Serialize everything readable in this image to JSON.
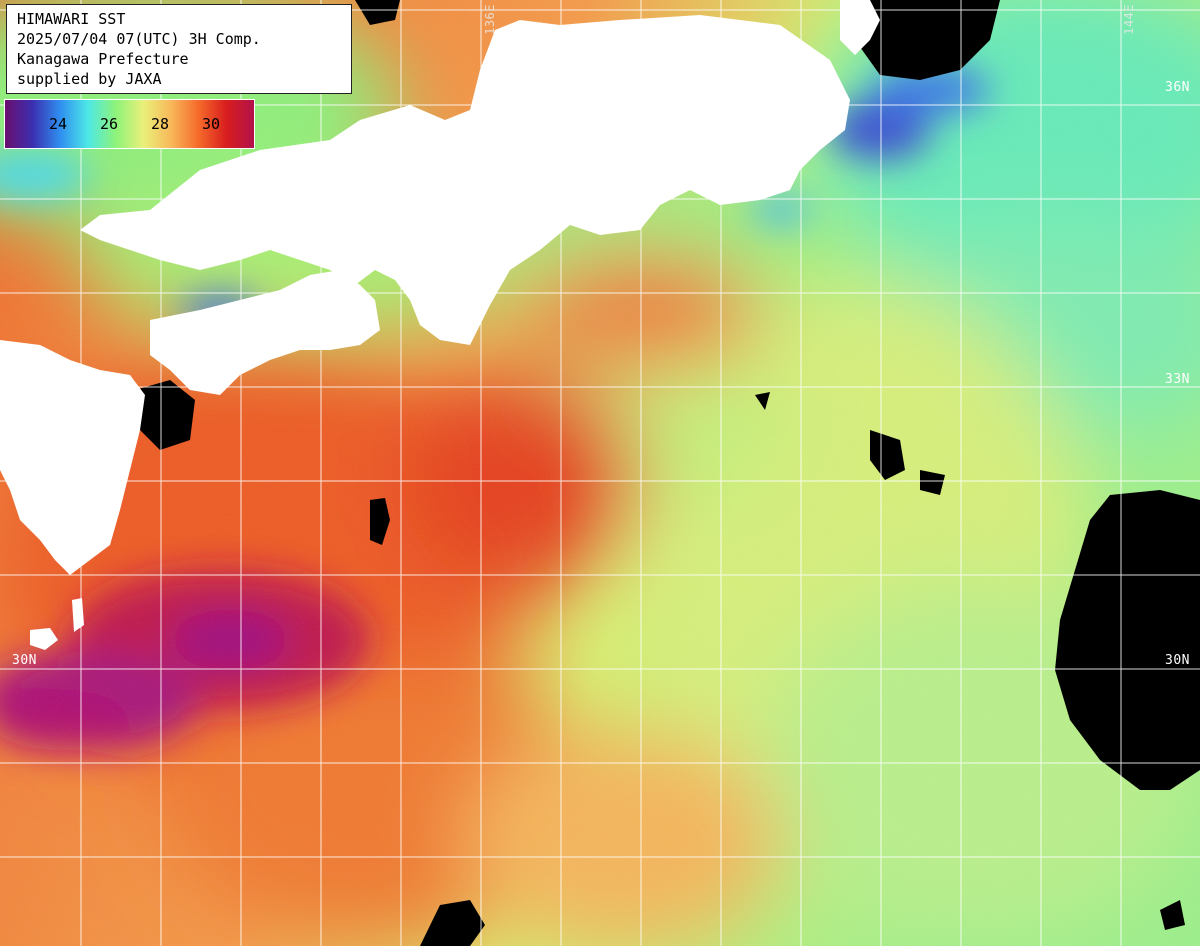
{
  "info": {
    "line1": "HIMAWARI SST",
    "line2": "2025/07/04 07(UTC) 3H Comp.",
    "line3": "Kanagawa Prefecture",
    "line4": "supplied by JAXA"
  },
  "colorbar": {
    "ticks": [
      "24",
      "26",
      "28",
      "30"
    ],
    "colors": [
      "#6a0f6e",
      "#3b2fb0",
      "#2f8ff0",
      "#4de8e6",
      "#8df37a",
      "#e9f07a",
      "#f8b85a",
      "#f56a2a",
      "#d81e1e",
      "#b2124a"
    ]
  },
  "grid_labels": {
    "lon_left": "136E",
    "lon_right": "144E",
    "lat_36": "36N",
    "lat_33": "33N",
    "lat_30_left": "30N",
    "lat_30_right": "30N"
  },
  "colors": {
    "land": "#ffffff",
    "missing": "#000000",
    "grid": "#ffffff"
  }
}
